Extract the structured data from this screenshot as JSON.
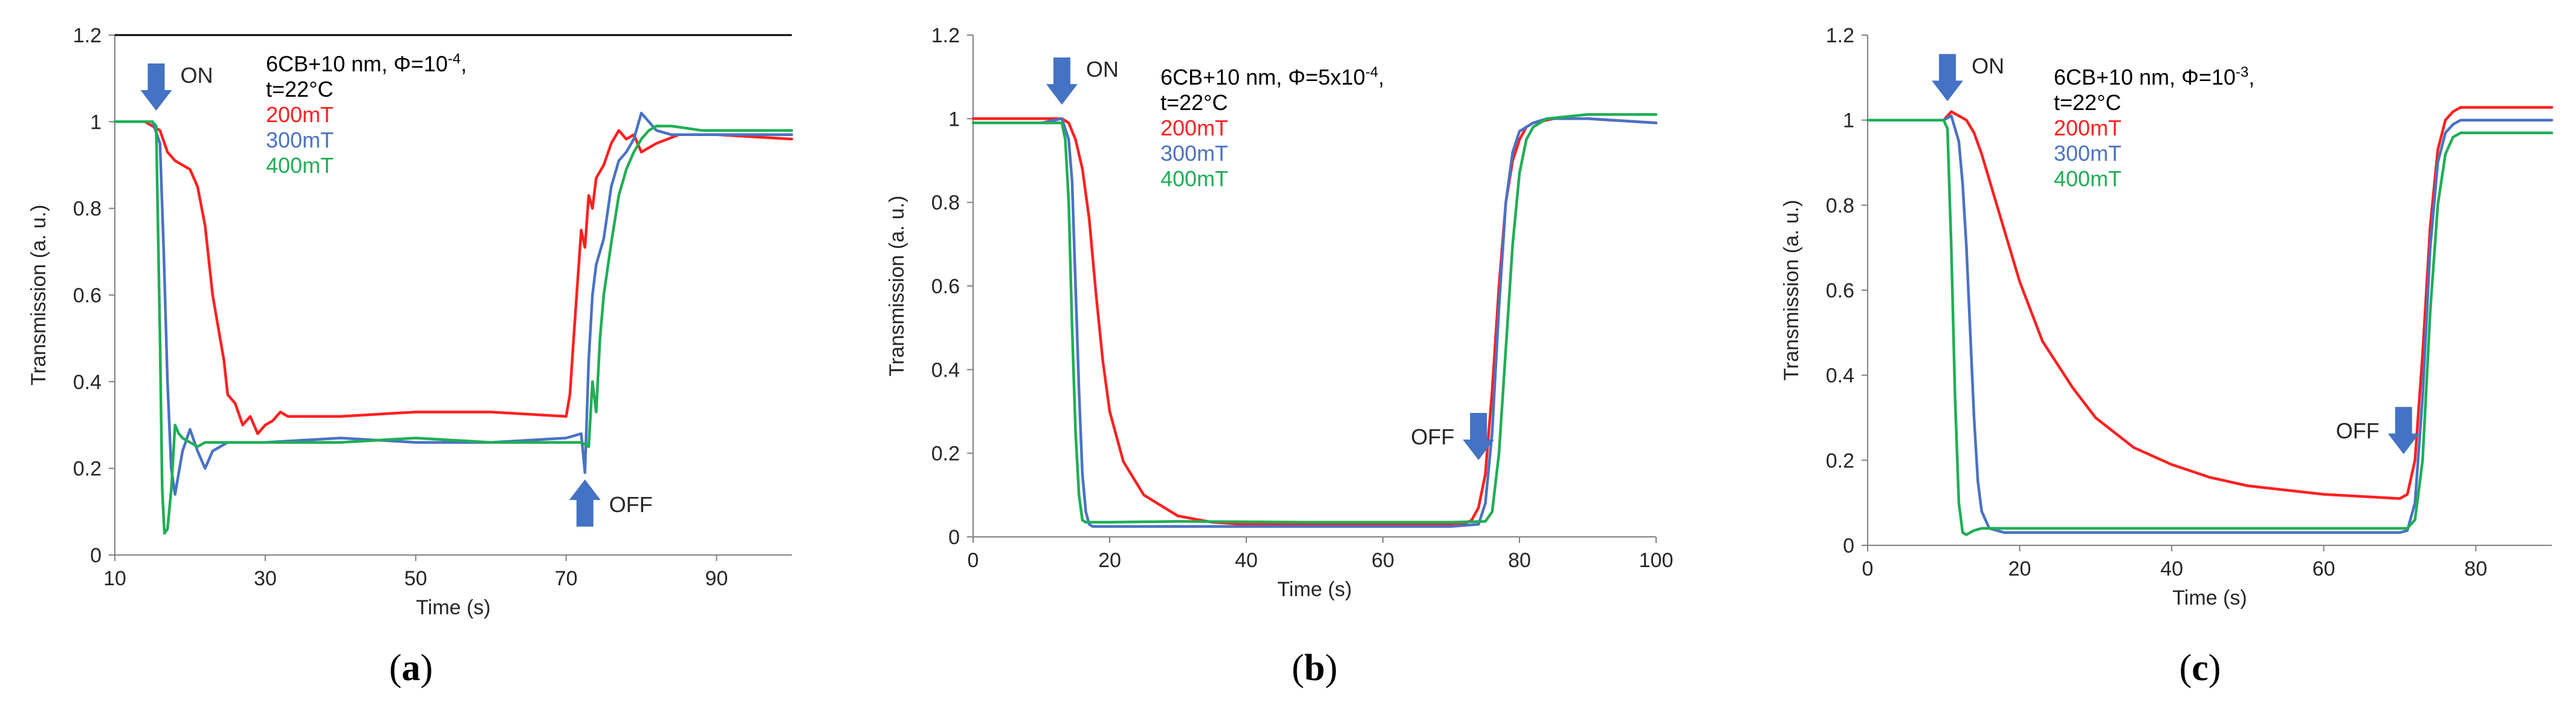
{
  "colors": {
    "series_200": "#ff2020",
    "series_300": "#4a72c4",
    "series_400": "#1fae55",
    "arrow": "#4472c4",
    "axis": "#808080"
  },
  "chart_data": [
    {
      "type": "line",
      "panel_label_open": "(",
      "panel_label_letter": "a",
      "panel_label_close": ")",
      "xlabel": "Time (s)",
      "ylabel": "Transmission (a. u.)",
      "xlim": [
        10,
        100
      ],
      "ylim": [
        0,
        1.2
      ],
      "xticks": [
        "10",
        "30",
        "50",
        "70",
        "90"
      ],
      "yticks": [
        "0",
        "0.2",
        "0.4",
        "0.6",
        "0.8",
        "1",
        "1.2"
      ],
      "top_border": true,
      "legend": {
        "lines": [
          "6CB+10 nm, Φ=10",
          "t=22°C"
        ],
        "exponent": "-4",
        "after_exponent": ",",
        "entries": [
          "200mT",
          "300mT",
          "400mT"
        ]
      },
      "markers": [
        {
          "label": "ON",
          "x": 15.5,
          "y": 1.08,
          "direction": "down"
        },
        {
          "label": "OFF",
          "x": 72.5,
          "y": 0.12,
          "direction": "up"
        }
      ],
      "series": [
        {
          "name": "200mT",
          "color_key": "series_200",
          "x": [
            10,
            14,
            16,
            17,
            18,
            20,
            21,
            22,
            23,
            24,
            24.5,
            25,
            26,
            27,
            28,
            29,
            30,
            31,
            32,
            33,
            35,
            40,
            50,
            60,
            70,
            70.5,
            71,
            72,
            72.5,
            73,
            73.5,
            74,
            75,
            76,
            77,
            78,
            79,
            80,
            82,
            85,
            90,
            100
          ],
          "y": [
            1.0,
            1.0,
            0.98,
            0.93,
            0.91,
            0.89,
            0.85,
            0.76,
            0.6,
            0.5,
            0.45,
            0.37,
            0.35,
            0.3,
            0.32,
            0.28,
            0.3,
            0.31,
            0.33,
            0.32,
            0.32,
            0.32,
            0.33,
            0.33,
            0.32,
            0.37,
            0.5,
            0.75,
            0.71,
            0.83,
            0.8,
            0.87,
            0.9,
            0.95,
            0.98,
            0.96,
            0.97,
            0.93,
            0.95,
            0.97,
            0.97,
            0.96
          ]
        },
        {
          "name": "300mT",
          "color_key": "series_300",
          "x": [
            10,
            15,
            16,
            16.5,
            17,
            17.5,
            18,
            18.5,
            19,
            20,
            21,
            22,
            23,
            25,
            30,
            40,
            50,
            60,
            70,
            72,
            72.5,
            73,
            73.5,
            74,
            75,
            76,
            77,
            78,
            79,
            80,
            81,
            82,
            84,
            90,
            100
          ],
          "y": [
            1.0,
            1.0,
            0.95,
            0.7,
            0.4,
            0.2,
            0.14,
            0.19,
            0.24,
            0.29,
            0.24,
            0.2,
            0.24,
            0.26,
            0.26,
            0.27,
            0.26,
            0.26,
            0.27,
            0.28,
            0.19,
            0.45,
            0.6,
            0.67,
            0.73,
            0.85,
            0.91,
            0.93,
            0.96,
            1.02,
            1.0,
            0.98,
            0.97,
            0.97,
            0.97
          ]
        },
        {
          "name": "400mT",
          "color_key": "series_400",
          "x": [
            10,
            15,
            15.5,
            16,
            16.3,
            16.6,
            17,
            17.5,
            18,
            18.5,
            19,
            20,
            21,
            22,
            25,
            30,
            40,
            50,
            60,
            70,
            72,
            73,
            73.5,
            74,
            74.5,
            75,
            76,
            77,
            78,
            79,
            80,
            81,
            82,
            84,
            88,
            100
          ],
          "y": [
            1.0,
            1.0,
            0.99,
            0.5,
            0.15,
            0.05,
            0.06,
            0.15,
            0.3,
            0.28,
            0.27,
            0.26,
            0.25,
            0.26,
            0.26,
            0.26,
            0.26,
            0.27,
            0.26,
            0.26,
            0.26,
            0.25,
            0.4,
            0.33,
            0.5,
            0.6,
            0.72,
            0.83,
            0.89,
            0.93,
            0.96,
            0.98,
            0.99,
            0.99,
            0.98,
            0.98
          ]
        }
      ]
    },
    {
      "type": "line",
      "panel_label_open": "(",
      "panel_label_letter": "b",
      "panel_label_close": ")",
      "xlabel": "Time (s)",
      "ylabel": "Transmission (a. u.)",
      "xlim": [
        0,
        100
      ],
      "ylim": [
        0,
        1.2
      ],
      "xticks": [
        "0",
        "20",
        "40",
        "60",
        "80",
        "100"
      ],
      "yticks": [
        "0",
        "0.2",
        "0.4",
        "0.6",
        "0.8",
        "1",
        "1.2"
      ],
      "top_border": false,
      "legend": {
        "lines": [
          "6CB+10 nm, Φ=5x10",
          "t=22°C"
        ],
        "exponent": "-4",
        "after_exponent": ",",
        "entries": [
          "200mT",
          "300mT",
          "400mT"
        ]
      },
      "markers": [
        {
          "label": "ON",
          "x": 13,
          "y": 1.09,
          "direction": "down"
        },
        {
          "label": "OFF",
          "x": 74,
          "y": 0.24,
          "direction": "down"
        }
      ],
      "series": [
        {
          "name": "200mT",
          "color_key": "series_200",
          "x": [
            0,
            10,
            13,
            14,
            15,
            16,
            17,
            18,
            19,
            20,
            22,
            25,
            30,
            35,
            40,
            50,
            60,
            70,
            72,
            73,
            74,
            75,
            76,
            77,
            78,
            79,
            80,
            81,
            82,
            85,
            90,
            100
          ],
          "y": [
            1.0,
            1.0,
            1.0,
            0.99,
            0.95,
            0.88,
            0.76,
            0.58,
            0.42,
            0.3,
            0.18,
            0.1,
            0.05,
            0.035,
            0.03,
            0.03,
            0.03,
            0.03,
            0.032,
            0.04,
            0.07,
            0.15,
            0.35,
            0.6,
            0.8,
            0.9,
            0.95,
            0.98,
            0.99,
            1.0,
            1.0,
            0.99
          ]
        },
        {
          "name": "300mT",
          "color_key": "series_300",
          "x": [
            0,
            10,
            13,
            14,
            14.5,
            15,
            15.5,
            16,
            16.5,
            17,
            17.5,
            18,
            20,
            30,
            50,
            70,
            74,
            75,
            76,
            77,
            78,
            79,
            80,
            82,
            84,
            90,
            100
          ],
          "y": [
            0.99,
            0.99,
            1.0,
            0.95,
            0.85,
            0.6,
            0.35,
            0.15,
            0.06,
            0.03,
            0.025,
            0.025,
            0.025,
            0.025,
            0.025,
            0.025,
            0.03,
            0.08,
            0.25,
            0.55,
            0.8,
            0.92,
            0.97,
            0.99,
            1.0,
            1.0,
            0.99
          ]
        },
        {
          "name": "400mT",
          "color_key": "series_400",
          "x": [
            0,
            10,
            13,
            13.5,
            14,
            14.5,
            15,
            15.5,
            16,
            16.5,
            17,
            18,
            20,
            30,
            50,
            70,
            75,
            76,
            77,
            78,
            79,
            80,
            81,
            82,
            84,
            90,
            100
          ],
          "y": [
            0.99,
            0.99,
            0.99,
            0.95,
            0.8,
            0.5,
            0.25,
            0.1,
            0.04,
            0.035,
            0.035,
            0.035,
            0.035,
            0.037,
            0.035,
            0.035,
            0.037,
            0.06,
            0.2,
            0.45,
            0.7,
            0.87,
            0.95,
            0.98,
            1.0,
            1.01,
            1.01
          ]
        }
      ]
    },
    {
      "type": "line",
      "panel_label_open": "(",
      "panel_label_letter": "c",
      "panel_label_close": ")",
      "xlabel": "Time (s)",
      "ylabel": "Transmission (a. u.)",
      "xlim": [
        0,
        90
      ],
      "ylim": [
        0,
        1.2
      ],
      "xticks": [
        "0",
        "20",
        "40",
        "60",
        "80"
      ],
      "yticks": [
        "0",
        "0.2",
        "0.4",
        "0.6",
        "0.8",
        "1",
        "1.2"
      ],
      "top_border": false,
      "legend": {
        "lines": [
          "6CB+10 nm, Φ=10",
          "t=22°C"
        ],
        "exponent": "-3",
        "after_exponent": ",",
        "entries": [
          "200mT",
          "300mT",
          "400mT"
        ]
      },
      "markers": [
        {
          "label": "ON",
          "x": 10.5,
          "y": 1.1,
          "direction": "down"
        },
        {
          "label": "OFF",
          "x": 70.5,
          "y": 0.27,
          "direction": "down"
        }
      ],
      "series": [
        {
          "name": "200mT",
          "color_key": "series_200",
          "x": [
            0,
            10,
            11,
            12,
            13,
            14,
            15,
            17,
            20,
            23,
            27,
            30,
            35,
            40,
            45,
            50,
            55,
            60,
            65,
            70,
            71,
            72,
            73,
            74,
            75,
            76,
            77,
            78,
            80,
            90
          ],
          "y": [
            1.0,
            1.0,
            1.02,
            1.01,
            1.0,
            0.97,
            0.92,
            0.8,
            0.62,
            0.48,
            0.37,
            0.3,
            0.23,
            0.19,
            0.16,
            0.14,
            0.13,
            0.12,
            0.115,
            0.11,
            0.12,
            0.2,
            0.45,
            0.75,
            0.93,
            1.0,
            1.02,
            1.03,
            1.03,
            1.03
          ]
        },
        {
          "name": "300mT",
          "color_key": "series_300",
          "x": [
            0,
            10,
            11,
            12,
            12.5,
            13,
            13.5,
            14,
            14.5,
            15,
            16,
            17,
            18,
            20,
            30,
            50,
            70,
            71,
            72,
            73,
            74,
            75,
            76,
            77,
            78,
            80,
            90
          ],
          "y": [
            1.0,
            1.0,
            1.01,
            0.95,
            0.85,
            0.7,
            0.5,
            0.3,
            0.15,
            0.08,
            0.04,
            0.035,
            0.03,
            0.03,
            0.03,
            0.03,
            0.03,
            0.035,
            0.1,
            0.35,
            0.7,
            0.9,
            0.97,
            0.99,
            1.0,
            1.0,
            1.0
          ]
        },
        {
          "name": "400mT",
          "color_key": "series_400",
          "x": [
            0,
            10,
            10.5,
            11,
            11.5,
            12,
            12.5,
            13,
            13.5,
            14,
            15,
            17,
            20,
            30,
            50,
            70,
            71,
            72,
            73,
            74,
            75,
            76,
            77,
            78,
            80,
            90
          ],
          "y": [
            1.0,
            1.0,
            0.98,
            0.7,
            0.35,
            0.1,
            0.03,
            0.025,
            0.03,
            0.035,
            0.04,
            0.04,
            0.04,
            0.04,
            0.04,
            0.04,
            0.04,
            0.06,
            0.2,
            0.55,
            0.8,
            0.92,
            0.96,
            0.97,
            0.97,
            0.97
          ]
        }
      ]
    }
  ]
}
